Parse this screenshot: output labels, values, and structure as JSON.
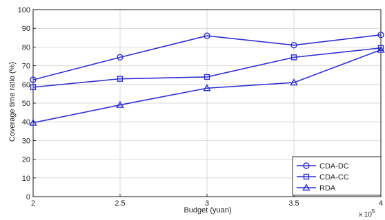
{
  "chart_data": {
    "type": "line",
    "xlabel": "Budget (yuan)",
    "ylabel": "Coverage time ratio (%)",
    "x_multiplier_label": "x 10",
    "x_multiplier_exponent": "5",
    "x": [
      2,
      2.5,
      3,
      3.5,
      4
    ],
    "xticks": [
      "2",
      "2.5",
      "3",
      "3.5",
      "4"
    ],
    "yticks": [
      "0",
      "10",
      "20",
      "30",
      "40",
      "50",
      "60",
      "70",
      "80",
      "90",
      "100"
    ],
    "xlim": [
      2,
      4
    ],
    "ylim": [
      0,
      100
    ],
    "grid": true,
    "legend_position": "bottom-right",
    "series": [
      {
        "name": "CDA-DC",
        "marker": "circle",
        "color": "#2f2fd0",
        "values": [
          62.5,
          74.5,
          86,
          81,
          86.5
        ]
      },
      {
        "name": "CDA-CC",
        "marker": "square",
        "color": "#2f2fd0",
        "values": [
          58.5,
          63,
          64,
          74.5,
          79.5
        ]
      },
      {
        "name": "RDA",
        "marker": "triangle",
        "color": "#2f2fd0",
        "values": [
          39.5,
          49,
          58,
          61,
          78.5
        ]
      }
    ]
  }
}
